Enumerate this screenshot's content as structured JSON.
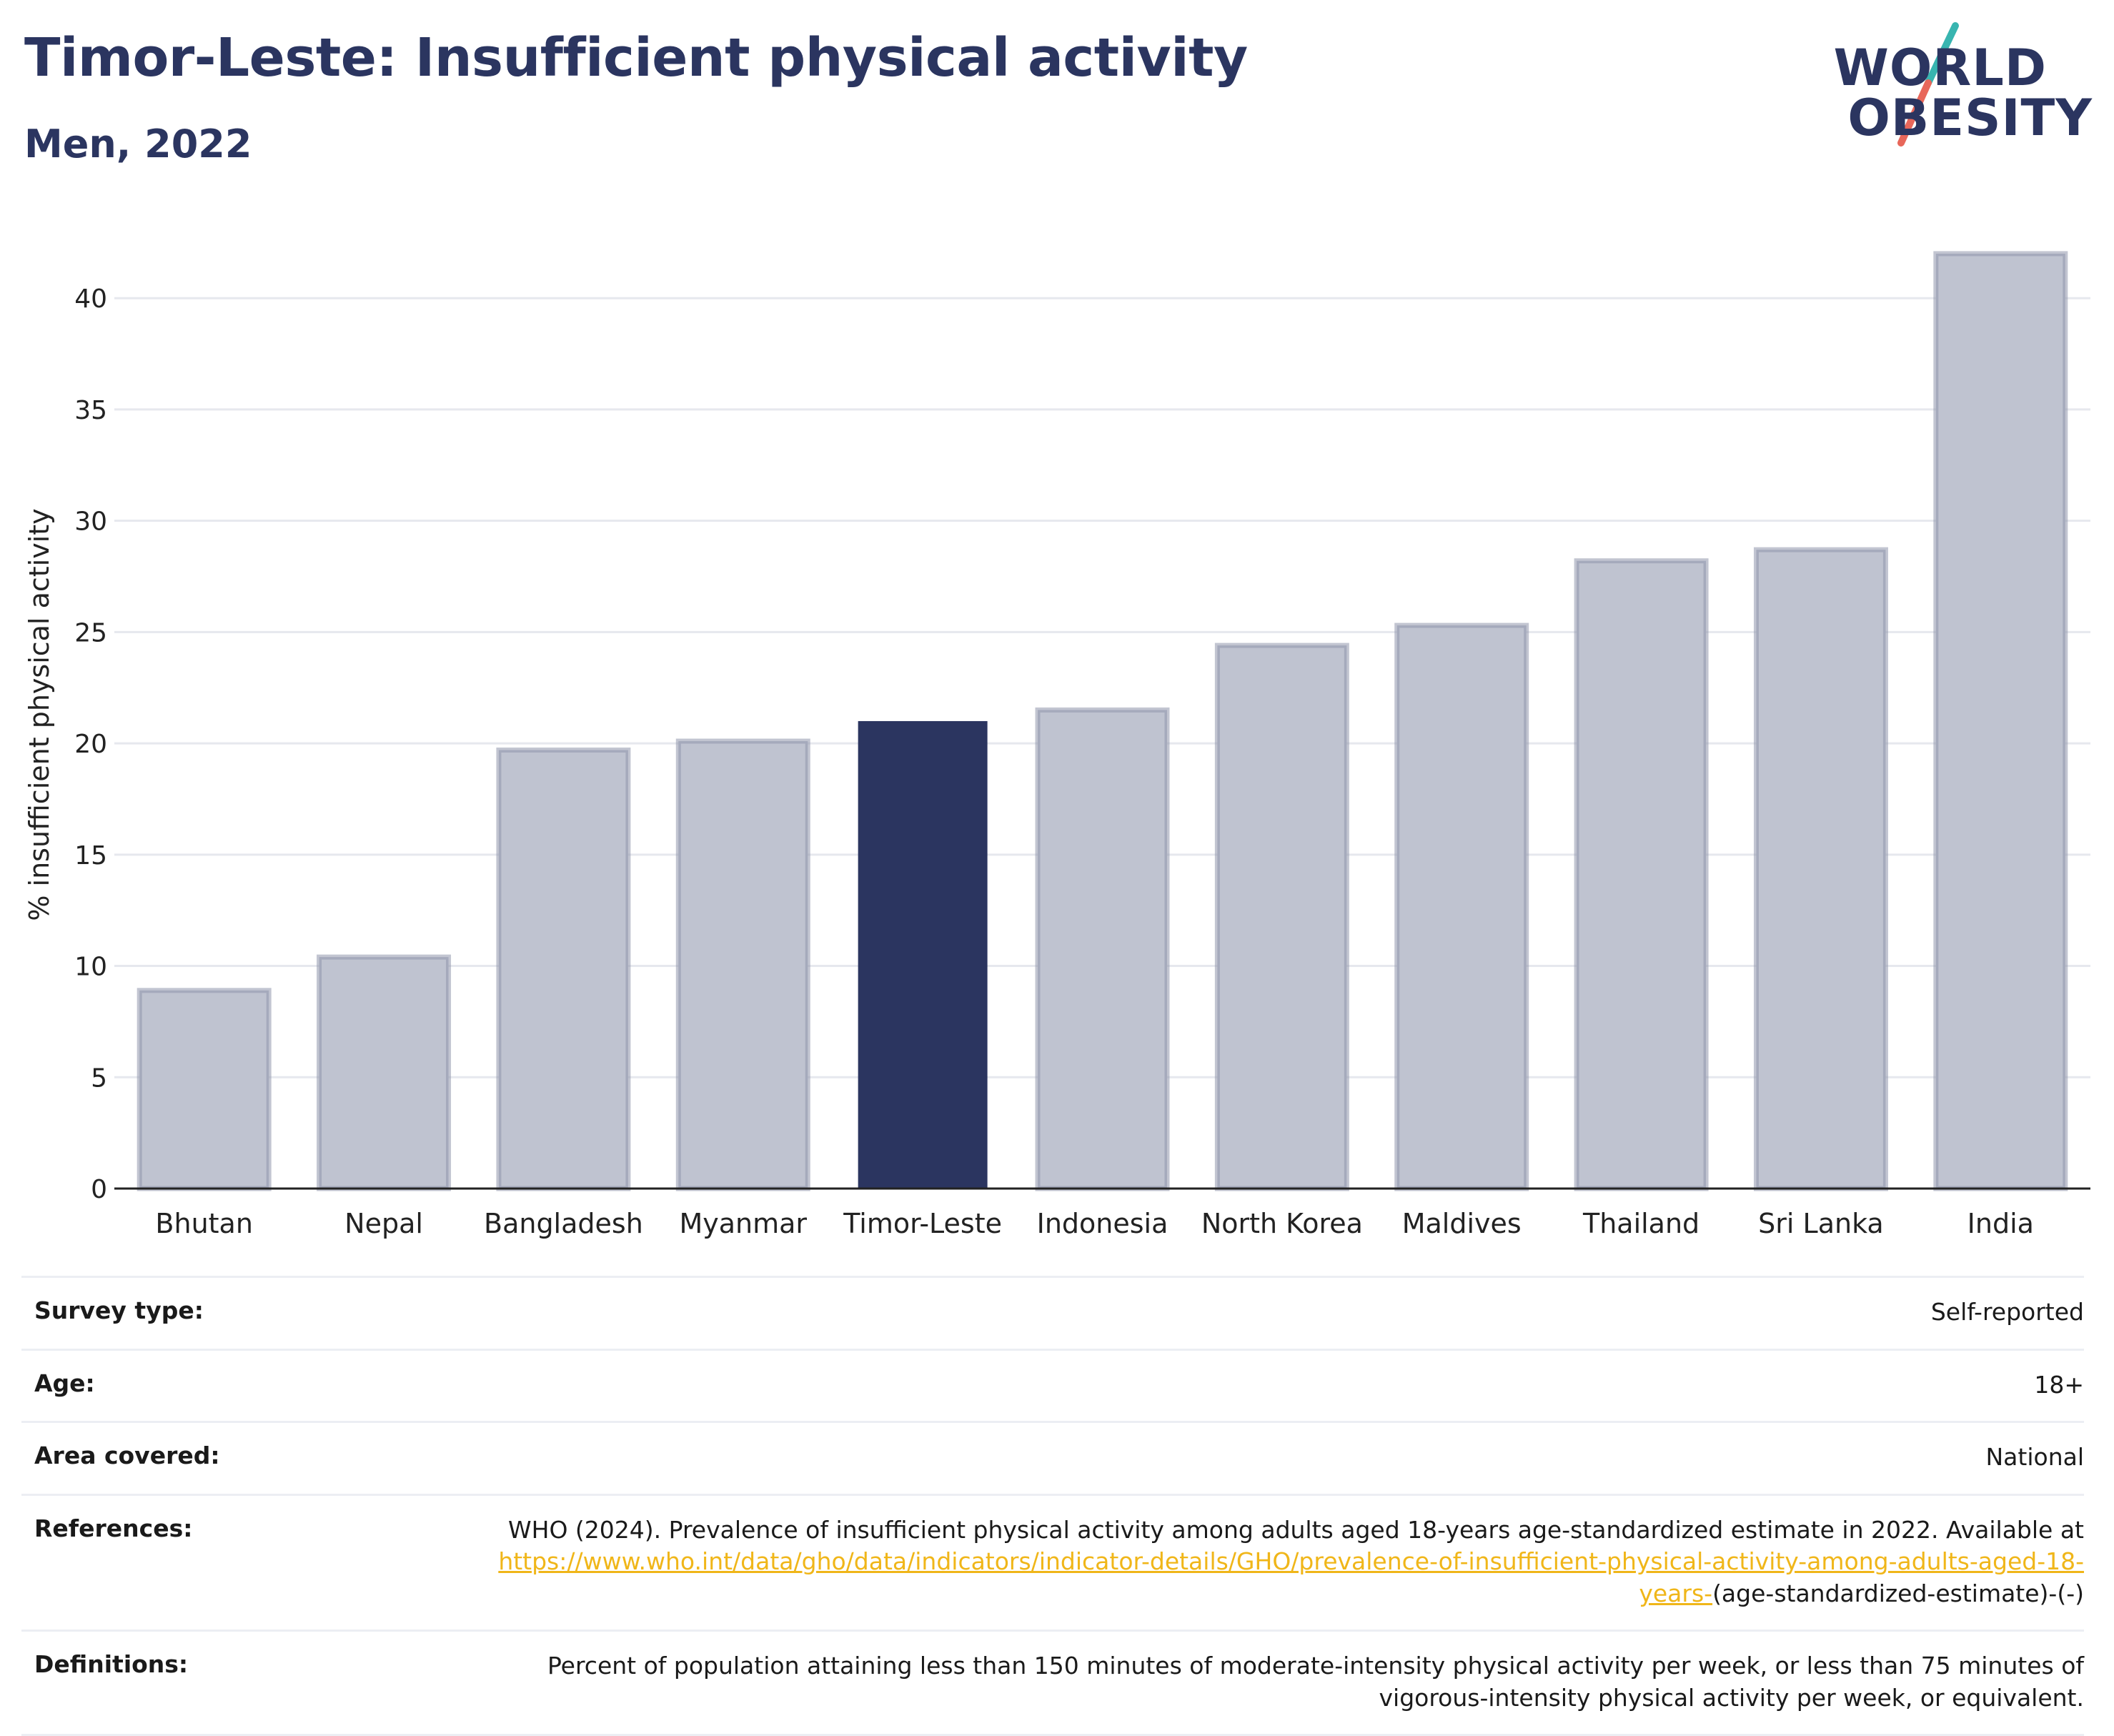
{
  "header": {
    "title": "Timor-Leste: Insufficient physical activity",
    "subtitle": "Men, 2022",
    "logo_line1": "WORLD",
    "logo_line2": "OBESITY"
  },
  "colors": {
    "title": "#2b3560",
    "highlight_bar": "#2b3560",
    "other_bar_fill": "#bfc3d0",
    "other_bar_stroke": "#8f96ab",
    "logo_slash_top": "#38b5b0",
    "logo_slash_bottom": "#e8675a",
    "link": "#f0b619"
  },
  "chart_data": {
    "type": "bar",
    "ylabel": "% insufficient physical activity",
    "ylim": [
      0,
      42.8
    ],
    "yticks": [
      0,
      5,
      10,
      15,
      20,
      25,
      30,
      35,
      40
    ],
    "grid": true,
    "categories": [
      "Bhutan",
      "Nepal",
      "Bangladesh",
      "Myanmar",
      "Timor-Leste",
      "Indonesia",
      "North Korea",
      "Maldives",
      "Thailand",
      "Sri Lanka",
      "India"
    ],
    "values": [
      8.9,
      10.4,
      19.7,
      20.1,
      21.0,
      21.5,
      24.4,
      25.3,
      28.2,
      28.7,
      42.0
    ],
    "highlight": "Timor-Leste"
  },
  "meta": [
    {
      "key": "Survey type:",
      "value": "Self-reported"
    },
    {
      "key": "Age:",
      "value": "18+"
    },
    {
      "key": "Area covered:",
      "value": "National"
    },
    {
      "key": "References:",
      "value": "WHO (2024). Prevalence of insufficient physical activity among adults aged 18-years age-standardized estimate in 2022. Available at",
      "link": "https://www.who.int/data/gho/data/indicators/indicator-details/GHO/prevalence-of-insufficient-physical-activity-among-adults-aged-18-years-",
      "suffix": "(age-standardized-estimate)-(-)"
    },
    {
      "key": "Definitions:",
      "value": "Percent of population attaining less than 150 minutes of moderate-intensity physical activity per week, or less than 75 minutes of vigorous-intensity physical activity per week, or equivalent."
    }
  ]
}
